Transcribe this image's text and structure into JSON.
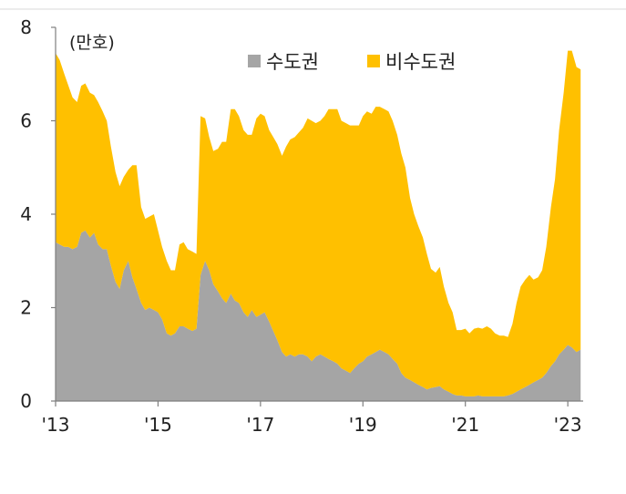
{
  "chart_data": {
    "type": "area",
    "stacked": true,
    "unit_label": "(만호)",
    "xlabel": "",
    "ylabel": "",
    "ylim": [
      0,
      8
    ],
    "yticks": [
      0,
      2,
      4,
      6,
      8
    ],
    "xlim": [
      2013.0,
      2023.3
    ],
    "xticks": [
      2013,
      2015,
      2017,
      2019,
      2021,
      2023
    ],
    "xtick_labels": [
      "'13",
      "'15",
      "'17",
      "'19",
      "'21",
      "'23"
    ],
    "grid": false,
    "legend_position": "top-center",
    "x": [
      2013.0,
      2013.08,
      2013.17,
      2013.25,
      2013.33,
      2013.42,
      2013.5,
      2013.58,
      2013.67,
      2013.75,
      2013.83,
      2013.92,
      2014.0,
      2014.08,
      2014.17,
      2014.25,
      2014.33,
      2014.42,
      2014.5,
      2014.58,
      2014.67,
      2014.75,
      2014.83,
      2014.92,
      2015.0,
      2015.08,
      2015.17,
      2015.25,
      2015.33,
      2015.42,
      2015.5,
      2015.58,
      2015.67,
      2015.75,
      2015.83,
      2015.92,
      2016.0,
      2016.08,
      2016.17,
      2016.25,
      2016.33,
      2016.42,
      2016.5,
      2016.58,
      2016.67,
      2016.75,
      2016.83,
      2016.92,
      2017.0,
      2017.08,
      2017.17,
      2017.25,
      2017.33,
      2017.42,
      2017.5,
      2017.58,
      2017.67,
      2017.75,
      2017.83,
      2017.92,
      2018.0,
      2018.08,
      2018.17,
      2018.25,
      2018.33,
      2018.42,
      2018.5,
      2018.58,
      2018.67,
      2018.75,
      2018.83,
      2018.92,
      2019.0,
      2019.08,
      2019.17,
      2019.25,
      2019.33,
      2019.42,
      2019.5,
      2019.58,
      2019.67,
      2019.75,
      2019.83,
      2019.92,
      2020.0,
      2020.08,
      2020.17,
      2020.25,
      2020.33,
      2020.42,
      2020.5,
      2020.58,
      2020.67,
      2020.75,
      2020.83,
      2020.92,
      2021.0,
      2021.08,
      2021.17,
      2021.25,
      2021.33,
      2021.42,
      2021.5,
      2021.58,
      2021.67,
      2021.75,
      2021.83,
      2021.92,
      2022.0,
      2022.08,
      2022.17,
      2022.25,
      2022.33,
      2022.42,
      2022.5,
      2022.58,
      2022.67,
      2022.75,
      2022.83,
      2022.92,
      2023.0,
      2023.08,
      2023.17,
      2023.25
    ],
    "series": [
      {
        "name": "수도권",
        "color": "#a5a5a5",
        "values": [
          3.4,
          3.35,
          3.3,
          3.3,
          3.25,
          3.3,
          3.6,
          3.65,
          3.5,
          3.6,
          3.35,
          3.25,
          3.25,
          2.9,
          2.55,
          2.4,
          2.8,
          3.0,
          2.65,
          2.4,
          2.1,
          1.95,
          2.0,
          1.95,
          1.9,
          1.75,
          1.45,
          1.4,
          1.45,
          1.6,
          1.6,
          1.55,
          1.5,
          1.55,
          2.7,
          3.0,
          2.8,
          2.5,
          2.35,
          2.2,
          2.1,
          2.3,
          2.15,
          2.1,
          1.9,
          1.8,
          1.95,
          1.8,
          1.85,
          1.9,
          1.7,
          1.5,
          1.3,
          1.05,
          0.95,
          1.0,
          0.95,
          1.0,
          1.0,
          0.95,
          0.85,
          0.95,
          1.0,
          0.95,
          0.9,
          0.85,
          0.8,
          0.7,
          0.65,
          0.6,
          0.7,
          0.8,
          0.85,
          0.95,
          1.0,
          1.05,
          1.1,
          1.05,
          1.0,
          0.9,
          0.8,
          0.6,
          0.5,
          0.45,
          0.4,
          0.35,
          0.3,
          0.25,
          0.28,
          0.3,
          0.32,
          0.25,
          0.2,
          0.15,
          0.12,
          0.12,
          0.1,
          0.1,
          0.1,
          0.12,
          0.1,
          0.1,
          0.1,
          0.1,
          0.1,
          0.1,
          0.12,
          0.15,
          0.2,
          0.25,
          0.3,
          0.35,
          0.4,
          0.45,
          0.5,
          0.6,
          0.75,
          0.85,
          1.0,
          1.1,
          1.2,
          1.15,
          1.05,
          1.1
        ]
      },
      {
        "name": "비수도권",
        "color": "#ffc000",
        "values": [
          4.05,
          3.95,
          3.7,
          3.45,
          3.25,
          3.1,
          3.15,
          3.15,
          3.1,
          2.95,
          3.05,
          2.95,
          2.75,
          2.55,
          2.35,
          2.2,
          2.0,
          1.95,
          2.4,
          2.65,
          2.05,
          1.95,
          1.95,
          2.05,
          1.75,
          1.55,
          1.55,
          1.4,
          1.35,
          1.75,
          1.8,
          1.7,
          1.7,
          1.6,
          3.4,
          3.05,
          2.85,
          2.85,
          3.05,
          3.35,
          3.45,
          3.95,
          4.1,
          4.0,
          3.9,
          3.9,
          3.75,
          4.25,
          4.3,
          4.2,
          4.1,
          4.15,
          4.2,
          4.2,
          4.5,
          4.6,
          4.7,
          4.75,
          4.85,
          5.1,
          5.15,
          5.0,
          5.0,
          5.15,
          5.35,
          5.4,
          5.45,
          5.3,
          5.3,
          5.3,
          5.2,
          5.1,
          5.25,
          5.25,
          5.15,
          5.25,
          5.2,
          5.2,
          5.2,
          5.1,
          4.9,
          4.7,
          4.5,
          3.9,
          3.6,
          3.4,
          3.2,
          2.9,
          2.55,
          2.45,
          2.55,
          2.2,
          1.9,
          1.75,
          1.4,
          1.4,
          1.45,
          1.35,
          1.45,
          1.45,
          1.45,
          1.5,
          1.45,
          1.35,
          1.3,
          1.3,
          1.25,
          1.5,
          1.9,
          2.2,
          2.3,
          2.35,
          2.2,
          2.2,
          2.3,
          2.7,
          3.4,
          3.9,
          4.8,
          5.5,
          6.3,
          6.35,
          6.1,
          6.0
        ]
      }
    ]
  }
}
